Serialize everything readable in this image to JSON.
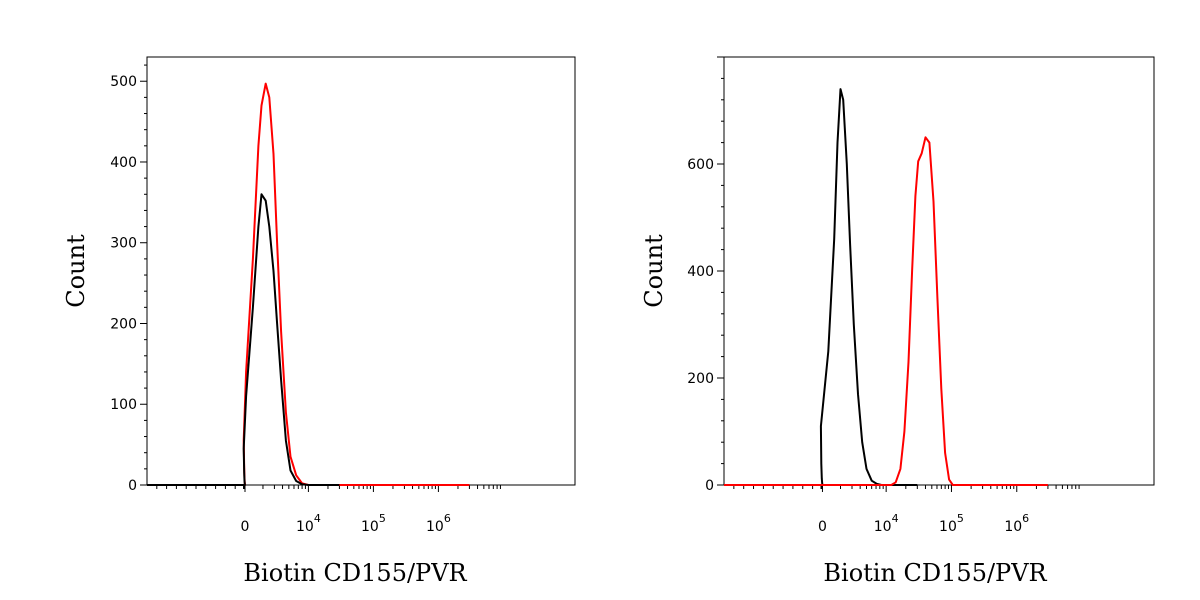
{
  "chart_data": [
    {
      "type": "line",
      "xlabel": "Biotin CD155/PVR",
      "ylabel": "Count",
      "x_scale": "biexponential",
      "xlim": [
        -1000,
        3000000
      ],
      "ylim": [
        0,
        530
      ],
      "x_ticks": [
        {
          "value": 0,
          "base": "0",
          "exp": ""
        },
        {
          "value": 10000,
          "base": "10",
          "exp": "4"
        },
        {
          "value": 100000,
          "base": "10",
          "exp": "5"
        },
        {
          "value": 1000000,
          "base": "10",
          "exp": "6"
        }
      ],
      "y_ticks": [
        0,
        100,
        200,
        300,
        400,
        500
      ],
      "grid": false,
      "series": [
        {
          "color": "#ff0000",
          "x": [
            -1000,
            10,
            100,
            300,
            500,
            800,
            1100,
            1400,
            1700,
            1900,
            2200,
            2500,
            2900,
            3300,
            3800,
            4500,
            5300,
            6500,
            8000,
            10000,
            30000,
            3000000
          ],
          "y": [
            0,
            0,
            2,
            8,
            20,
            55,
            140,
            280,
            420,
            470,
            497,
            480,
            410,
            300,
            190,
            90,
            35,
            12,
            2,
            0,
            0,
            0
          ]
        },
        {
          "color": "#000000",
          "x": [
            -1000,
            10,
            100,
            300,
            500,
            800,
            1100,
            1400,
            1700,
            1900,
            2200,
            2500,
            2900,
            3300,
            3800,
            4500,
            5300,
            6500,
            8000,
            10000,
            30000
          ],
          "y": [
            0,
            0,
            1,
            5,
            15,
            45,
            110,
            220,
            320,
            360,
            352,
            320,
            265,
            200,
            130,
            55,
            18,
            5,
            1,
            0,
            0
          ]
        }
      ]
    },
    {
      "type": "line",
      "xlabel": "Biotin CD155/PVR",
      "ylabel": "Count",
      "x_scale": "biexponential",
      "xlim": [
        -1000,
        3000000
      ],
      "ylim": [
        0,
        800
      ],
      "x_ticks": [
        {
          "value": 0,
          "base": "0",
          "exp": ""
        },
        {
          "value": 10000,
          "base": "10",
          "exp": "4"
        },
        {
          "value": 100000,
          "base": "10",
          "exp": "5"
        },
        {
          "value": 1000000,
          "base": "10",
          "exp": "6"
        }
      ],
      "y_ticks": [
        0,
        200,
        400,
        600
      ],
      "grid": false,
      "series": [
        {
          "color": "#000000",
          "x": [
            -1000,
            20,
            150,
            400,
            700,
            1000,
            1300,
            1600,
            1800,
            2000,
            2200,
            2500,
            2800,
            3200,
            3700,
            4300,
            5000,
            6000,
            7200,
            8500,
            10000,
            30000
          ],
          "y": [
            0,
            0,
            3,
            12,
            40,
            110,
            250,
            460,
            640,
            740,
            720,
            600,
            450,
            300,
            170,
            80,
            30,
            8,
            2,
            0,
            0,
            0
          ]
        },
        {
          "color": "#ff0000",
          "x": [
            -1000,
            12000,
            14000,
            16500,
            19000,
            22000,
            25000,
            28000,
            31000,
            35000,
            40000,
            46000,
            53000,
            61000,
            70000,
            80000,
            92000,
            105000,
            3000000
          ],
          "y": [
            0,
            0,
            5,
            30,
            100,
            230,
            400,
            540,
            605,
            620,
            650,
            640,
            530,
            350,
            180,
            60,
            10,
            0,
            0
          ]
        }
      ]
    }
  ]
}
